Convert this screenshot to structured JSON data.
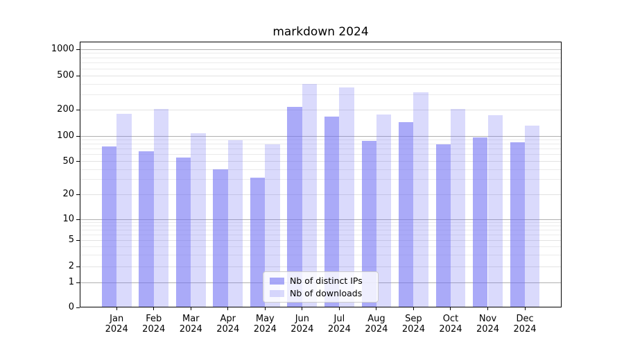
{
  "title": "markdown 2024",
  "colors": {
    "bar_distinct_ips": "rgba(113,113,243,0.60)",
    "bar_downloads": "rgba(113,113,243,0.26)",
    "grid_major": "#b0b0b0",
    "grid_minor_labeled": "#e2e2e2",
    "grid_minor_faint": "#ebebeb",
    "axis": "#000000",
    "legend_border": "#cccccc"
  },
  "chart_data": {
    "type": "bar",
    "title": "markdown 2024",
    "categories": [
      "Jan 2024",
      "Feb 2024",
      "Mar 2024",
      "Apr 2024",
      "May 2024",
      "Jun 2024",
      "Jul 2024",
      "Aug 2024",
      "Sep 2024",
      "Oct 2024",
      "Nov 2024",
      "Dec 2024"
    ],
    "series": [
      {
        "name": "Nb of distinct IPs",
        "values": [
          75,
          66,
          55,
          40,
          32,
          215,
          166,
          88,
          144,
          80,
          96,
          84
        ]
      },
      {
        "name": "Nb of downloads",
        "values": [
          180,
          205,
          108,
          89,
          80,
          402,
          365,
          178,
          320,
          204,
          173,
          132
        ]
      }
    ],
    "y_ticks": [
      0,
      1,
      2,
      5,
      10,
      20,
      50,
      100,
      200,
      500,
      1000
    ],
    "y_tick_labels": [
      "0",
      "1",
      "2",
      "5",
      "10",
      "20",
      "50",
      "100",
      "200",
      "500",
      "1000"
    ],
    "y_minor_gridlines": [
      3,
      4,
      6,
      7,
      8,
      9,
      30,
      40,
      60,
      70,
      80,
      90,
      300,
      400,
      600,
      700,
      800,
      900
    ],
    "y_scale": "symlog-like",
    "ylim": [
      0,
      1000
    ],
    "xlabel": "",
    "ylabel": "",
    "grid": true,
    "legend_position": "lower center"
  }
}
